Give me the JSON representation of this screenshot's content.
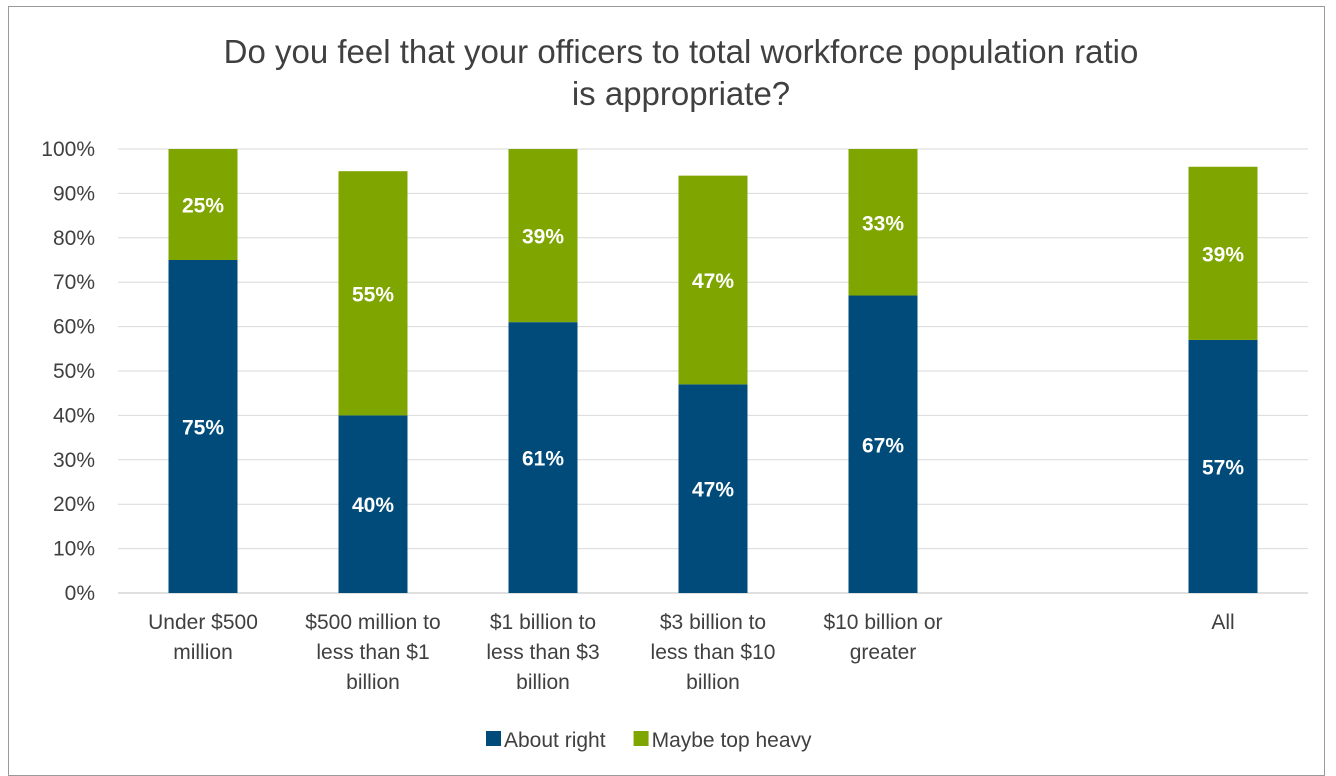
{
  "chart_data": {
    "type": "bar",
    "stacked": true,
    "title_lines": [
      "Do you feel that your officers to total workforce population ratio",
      "is appropriate?"
    ],
    "categories": [
      [
        "Under $500",
        "million"
      ],
      [
        "$500 million to",
        "less than $1",
        "billion"
      ],
      [
        "$1 billion to",
        "less than $3",
        "billion"
      ],
      [
        "$3 billion to",
        "less than $10",
        "billion"
      ],
      [
        "$10 billion or",
        "greater"
      ],
      [],
      [
        "All"
      ]
    ],
    "series": [
      {
        "name": "About right",
        "color": "#004b7a",
        "values": [
          75,
          40,
          61,
          47,
          67,
          null,
          57
        ],
        "labels": [
          "75%",
          "40%",
          "61%",
          "47%",
          "67%",
          "",
          "57%"
        ]
      },
      {
        "name": "Maybe top heavy",
        "color": "#7fa500",
        "values": [
          25,
          55,
          39,
          47,
          33,
          null,
          39
        ],
        "labels": [
          "25%",
          "55%",
          "39%",
          "47%",
          "33%",
          "",
          "39%"
        ]
      }
    ],
    "ylim": [
      0,
      100
    ],
    "yticks": [
      "0%",
      "10%",
      "20%",
      "30%",
      "40%",
      "50%",
      "60%",
      "70%",
      "80%",
      "90%",
      "100%"
    ],
    "grid": true,
    "legend_position": "bottom"
  }
}
